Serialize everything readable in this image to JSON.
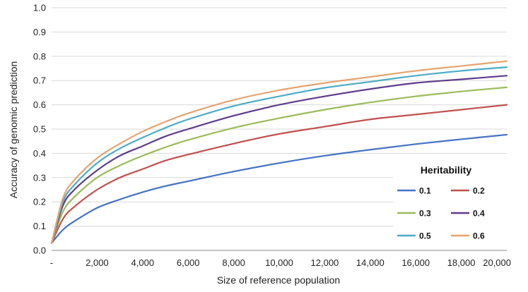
{
  "chart_data": {
    "type": "line",
    "title": "",
    "xlabel": "Size of reference population",
    "ylabel": "Accuracy of genomic prediction",
    "xlim": [
      0,
      20000
    ],
    "ylim": [
      0,
      1.0
    ],
    "grid": "horizontal",
    "x_ticks": [
      0,
      2000,
      4000,
      6000,
      8000,
      10000,
      12000,
      14000,
      16000,
      18000,
      20000
    ],
    "x_tick_labels": [
      "-",
      "2,000",
      "4,000",
      "6,000",
      "8,000",
      "10,000",
      "12,000",
      "14,000",
      "16,000",
      "18,000",
      "20,000"
    ],
    "y_ticks": [
      0,
      0.1,
      0.2,
      0.3,
      0.4,
      0.5,
      0.6,
      0.7,
      0.8,
      0.9,
      1.0
    ],
    "y_tick_labels": [
      "0.0",
      "0.1",
      "0.2",
      "0.3",
      "0.4",
      "0.5",
      "0.6",
      "0.7",
      "0.8",
      "0.9",
      "1.0"
    ],
    "legend": {
      "title": "Heritability",
      "placement": "bottom-right"
    },
    "x": [
      0,
      500,
      1000,
      2000,
      3000,
      4000,
      5000,
      6000,
      8000,
      10000,
      12000,
      14000,
      16000,
      18000,
      20000
    ],
    "series": [
      {
        "name": "0.1",
        "color": "#4472C4",
        "values": [
          0.03,
          0.085,
          0.12,
          0.175,
          0.21,
          0.24,
          0.265,
          0.285,
          0.325,
          0.36,
          0.39,
          0.415,
          0.438,
          0.458,
          0.477
        ]
      },
      {
        "name": "0.2",
        "color": "#C0504D",
        "values": [
          0.03,
          0.13,
          0.18,
          0.25,
          0.3,
          0.335,
          0.37,
          0.395,
          0.44,
          0.48,
          0.51,
          0.54,
          0.56,
          0.58,
          0.6
        ]
      },
      {
        "name": "0.3",
        "color": "#9BBB59",
        "values": [
          0.03,
          0.16,
          0.22,
          0.3,
          0.35,
          0.39,
          0.425,
          0.455,
          0.505,
          0.545,
          0.58,
          0.61,
          0.635,
          0.655,
          0.672
        ]
      },
      {
        "name": "0.4",
        "color": "#5E3C8C",
        "values": [
          0.03,
          0.185,
          0.25,
          0.33,
          0.39,
          0.43,
          0.47,
          0.5,
          0.555,
          0.6,
          0.635,
          0.665,
          0.69,
          0.705,
          0.72
        ]
      },
      {
        "name": "0.5",
        "color": "#4BACC6",
        "values": [
          0.03,
          0.2,
          0.27,
          0.36,
          0.42,
          0.465,
          0.505,
          0.54,
          0.595,
          0.635,
          0.67,
          0.695,
          0.72,
          0.74,
          0.755
        ]
      },
      {
        "name": "0.6",
        "color": "#E6A36E",
        "values": [
          0.03,
          0.215,
          0.29,
          0.38,
          0.44,
          0.49,
          0.53,
          0.565,
          0.62,
          0.66,
          0.69,
          0.715,
          0.74,
          0.76,
          0.78
        ]
      }
    ]
  }
}
